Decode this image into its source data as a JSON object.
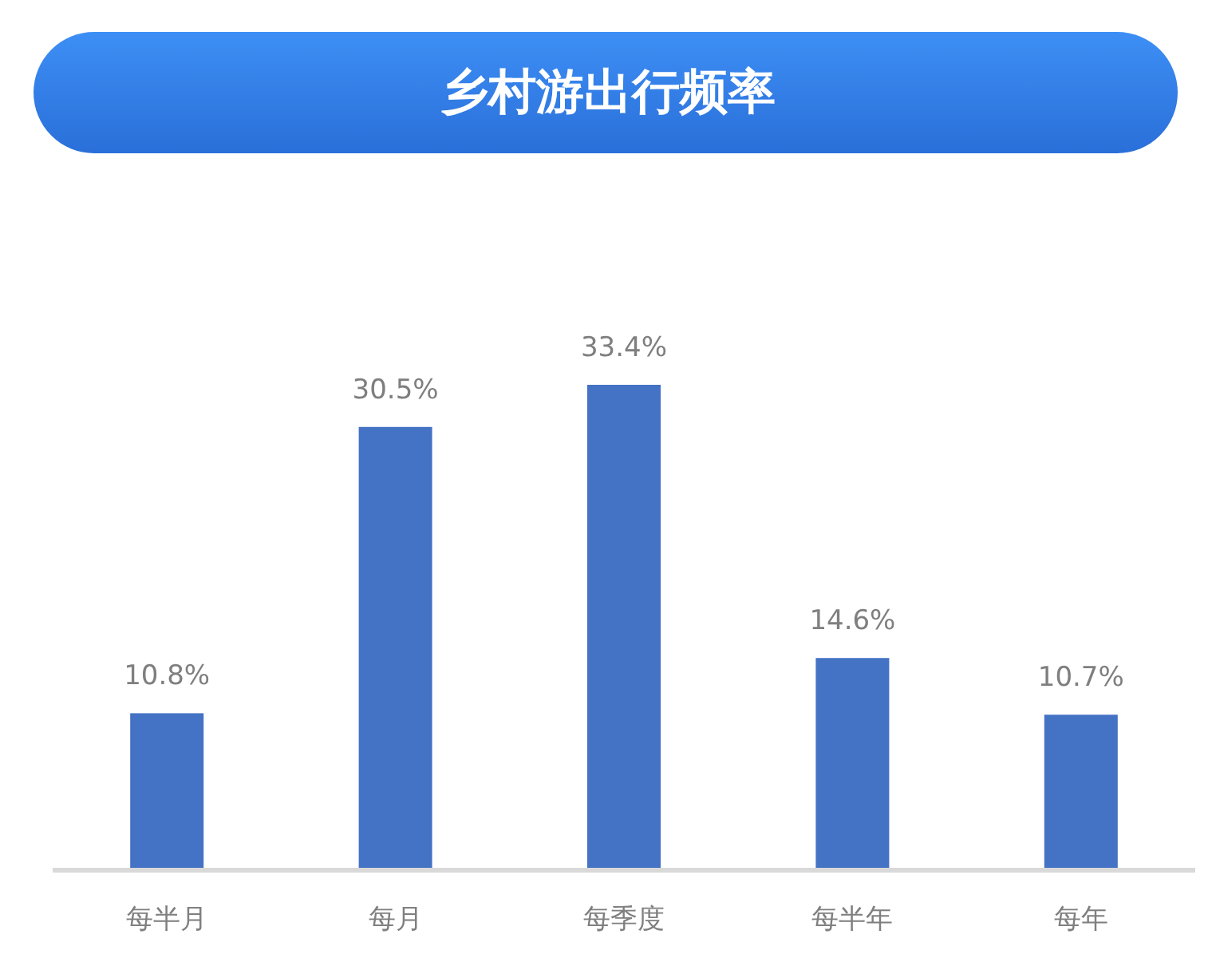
{
  "chart_data": {
    "type": "bar",
    "title": "乡村游出行频率",
    "categories": [
      "每半月",
      "每月",
      "每季度",
      "每半年",
      "每年"
    ],
    "values": [
      10.8,
      30.5,
      33.4,
      14.6,
      10.7
    ],
    "value_labels": [
      "10.8%",
      "30.5%",
      "33.4%",
      "14.6%",
      "10.7%"
    ],
    "color": "#4472c4"
  }
}
